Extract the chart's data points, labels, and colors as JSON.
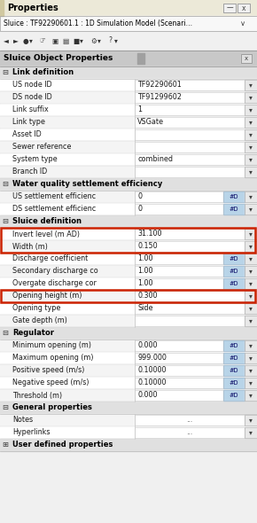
{
  "title_bar": "Properties",
  "subtitle": "Sluice : TF92290601.1 : 1D Simulation Model (Scenari…",
  "section_header_text": "Sluice Object Properties",
  "bg_color": "#f0f0f0",
  "blue_cell_color": "#b8d4e8",
  "title_bar_bg": "#f0f0f0",
  "subtitle_bg": "#f8f8f8",
  "toolbar_bg": "#f0f0f0",
  "prop_header_bg": "#c0c0c0",
  "section_row_bg": "#e4e4e4",
  "data_row_bg": "#ffffff",
  "red_highlight": "#cc2200",
  "rows": [
    {
      "type": "section",
      "label": "Link definition"
    },
    {
      "type": "data",
      "label": "US node ID",
      "value": "TF92290601",
      "hd": false
    },
    {
      "type": "data",
      "label": "DS node ID",
      "value": "TF91299602",
      "hd": false
    },
    {
      "type": "data",
      "label": "Link suffix",
      "value": "1",
      "hd": false
    },
    {
      "type": "data",
      "label": "Link type",
      "value": "VSGate",
      "hd": false
    },
    {
      "type": "data",
      "label": "Asset ID",
      "value": "",
      "hd": false
    },
    {
      "type": "data",
      "label": "Sewer reference",
      "value": "",
      "hd": false
    },
    {
      "type": "data",
      "label": "System type",
      "value": "combined",
      "hd": false
    },
    {
      "type": "data",
      "label": "Branch ID",
      "value": "",
      "hd": false
    },
    {
      "type": "section",
      "label": "Water quality settlement efficiency"
    },
    {
      "type": "data",
      "label": "US settlement efficienc",
      "value": "0",
      "hd": true
    },
    {
      "type": "data",
      "label": "DS settlement efficienc",
      "value": "0",
      "hd": true
    },
    {
      "type": "section",
      "label": "Sluice definition"
    },
    {
      "type": "data",
      "label": "Invert level (m AD)",
      "value": "31.100",
      "hd": false,
      "highlight_group": 1
    },
    {
      "type": "data",
      "label": "Width (m)",
      "value": "0.150",
      "hd": false,
      "highlight_group": 1
    },
    {
      "type": "data",
      "label": "Discharge coefficient",
      "value": "1.00",
      "hd": true
    },
    {
      "type": "data",
      "label": "Secondary discharge co",
      "value": "1.00",
      "hd": true
    },
    {
      "type": "data",
      "label": "Overgate discharge cor",
      "value": "1.00",
      "hd": true
    },
    {
      "type": "data",
      "label": "Opening height (m)",
      "value": "0.300",
      "hd": false,
      "highlight_group": 2
    },
    {
      "type": "data",
      "label": "Opening type",
      "value": "Side",
      "hd": false
    },
    {
      "type": "data",
      "label": "Gate depth (m)",
      "value": "",
      "hd": false
    },
    {
      "type": "section",
      "label": "Regulator"
    },
    {
      "type": "data",
      "label": "Minimum opening (m)",
      "value": "0.000",
      "hd": true
    },
    {
      "type": "data",
      "label": "Maximum opening (m)",
      "value": "999.000",
      "hd": true
    },
    {
      "type": "data",
      "label": "Positive speed (m/s)",
      "value": "0.10000",
      "hd": true
    },
    {
      "type": "data",
      "label": "Negative speed (m/s)",
      "value": "0.10000",
      "hd": true
    },
    {
      "type": "data",
      "label": "Threshold (m)",
      "value": "0.000",
      "hd": true
    },
    {
      "type": "section",
      "label": "General properties"
    },
    {
      "type": "data",
      "label": "Notes",
      "value": "...",
      "hd": false,
      "dots": true
    },
    {
      "type": "data",
      "label": "Hyperlinks",
      "value": "...",
      "hd": false,
      "dots": true
    },
    {
      "type": "section_plus",
      "label": "User defined properties"
    }
  ]
}
